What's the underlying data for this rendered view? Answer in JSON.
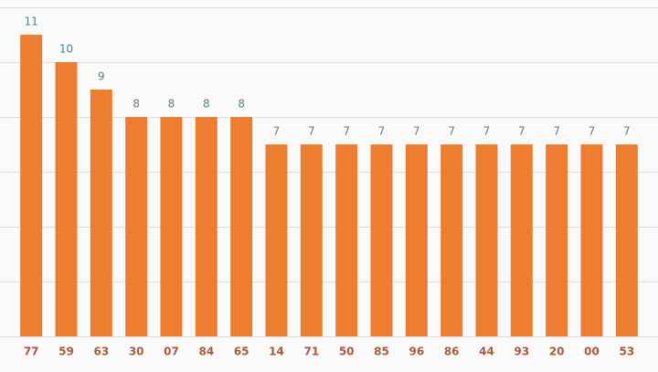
{
  "chart_data": {
    "type": "bar",
    "categories": [
      "77",
      "59",
      "63",
      "30",
      "07",
      "84",
      "65",
      "14",
      "71",
      "50",
      "85",
      "96",
      "86",
      "44",
      "93",
      "20",
      "00",
      "53"
    ],
    "values": [
      11,
      10,
      9,
      8,
      8,
      8,
      8,
      7,
      7,
      7,
      7,
      7,
      7,
      7,
      7,
      7,
      7,
      7
    ],
    "color": "#ed7d31",
    "ylim": [
      0,
      12
    ],
    "yticks": [
      0,
      2,
      4,
      6,
      8,
      10,
      12
    ],
    "grid": true
  }
}
